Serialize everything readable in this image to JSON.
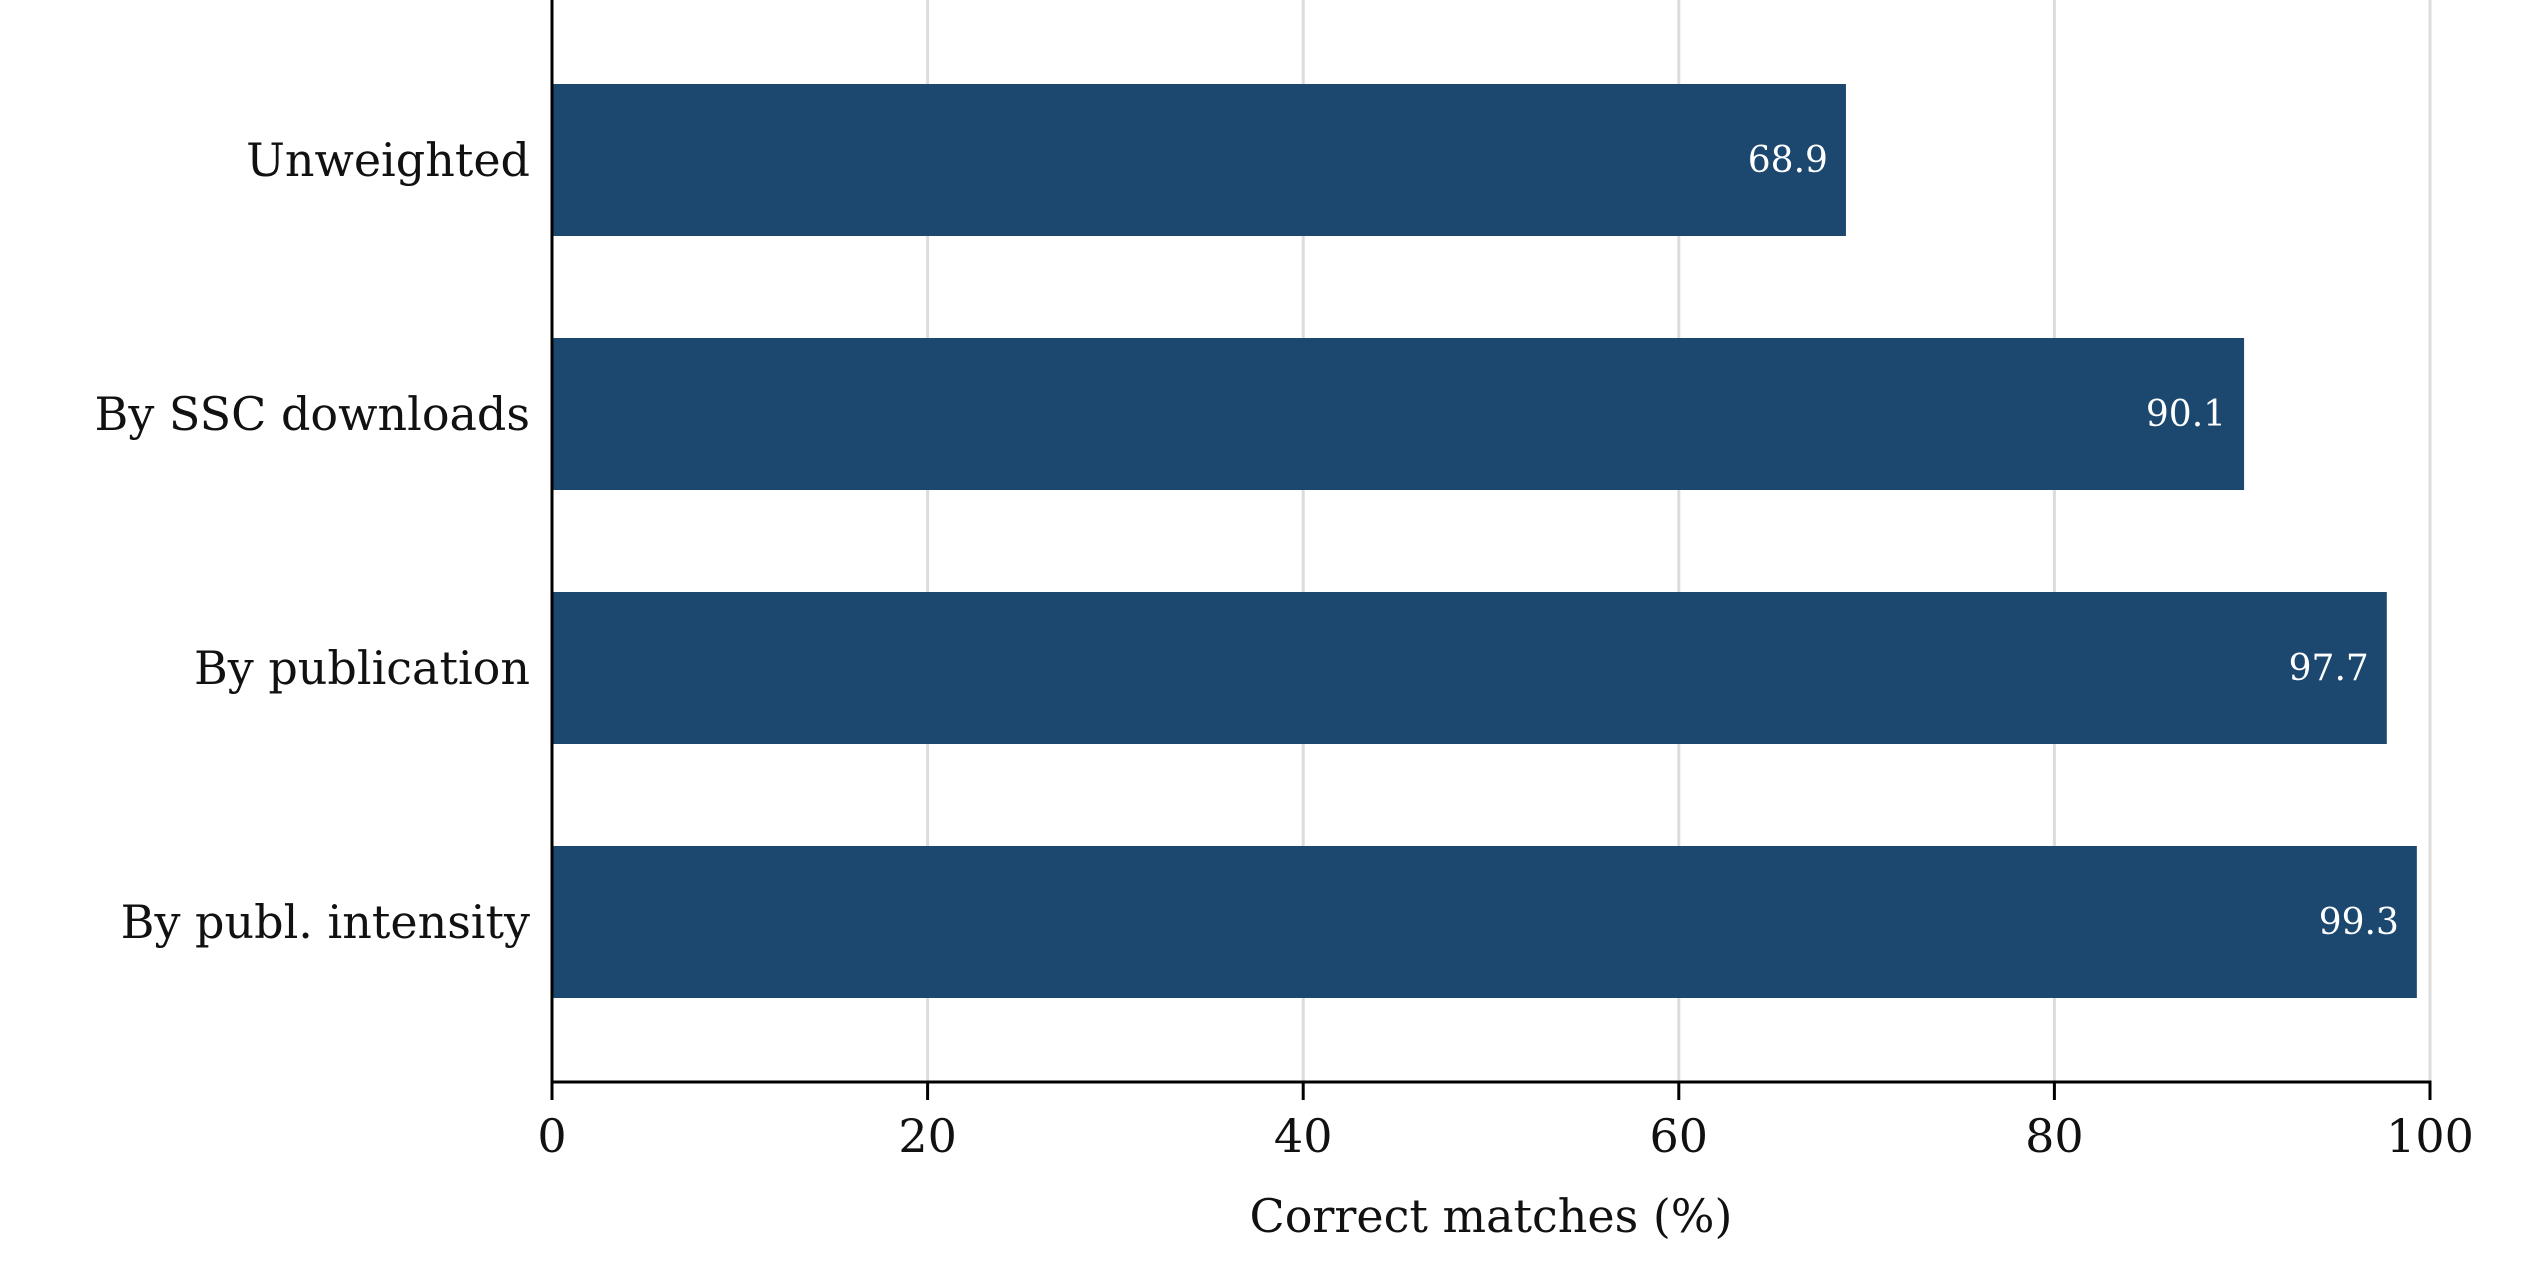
{
  "chart_data": {
    "type": "bar",
    "orientation": "horizontal",
    "categories": [
      "Unweighted",
      "By SSC downloads",
      "By publication",
      "By publ. intensity"
    ],
    "values": [
      68.9,
      90.1,
      97.7,
      99.3
    ],
    "value_labels": [
      "68.9",
      "90.1",
      "97.7",
      "99.3"
    ],
    "xlabel": "Correct matches (%)",
    "xlim": [
      0,
      100
    ],
    "xticks": [
      0,
      20,
      40,
      60,
      80,
      100
    ],
    "xtick_labels": [
      "0",
      "20",
      "40",
      "60",
      "80",
      "100"
    ],
    "grid": true,
    "bar_color": "#1c4870",
    "grid_color": "#dcdcdc",
    "axis_color": "#000000"
  }
}
